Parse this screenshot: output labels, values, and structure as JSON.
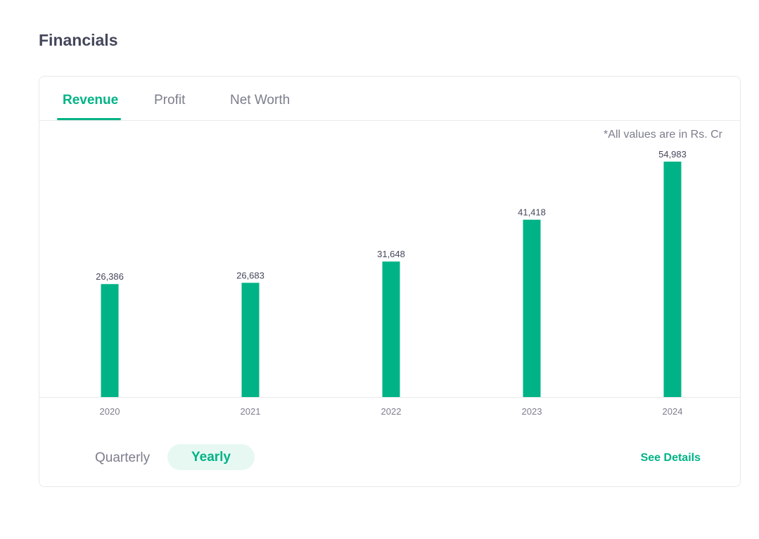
{
  "section": {
    "title": "Financials"
  },
  "tabs": [
    {
      "label": "Revenue",
      "active": true
    },
    {
      "label": "Profit",
      "active": false
    },
    {
      "label": "Net Worth",
      "active": false
    }
  ],
  "unit_note": "*All values are in Rs. Cr",
  "period_toggle": {
    "quarterly_label": "Quarterly",
    "yearly_label": "Yearly",
    "selected": "Yearly"
  },
  "see_details_label": "See Details",
  "colors": {
    "accent": "#00b386",
    "accent_light": "#e7f8f3",
    "text_primary": "#44475b",
    "text_secondary": "#7c7e8c",
    "border": "#e9e9eb"
  },
  "chart_data": {
    "type": "bar",
    "categories": [
      "2020",
      "2021",
      "2022",
      "2023",
      "2024"
    ],
    "values": [
      26386,
      26683,
      31648,
      41418,
      54983
    ],
    "value_labels": [
      "26,386",
      "26,683",
      "31,648",
      "41,418",
      "54,983"
    ],
    "title": "",
    "xlabel": "",
    "ylabel": "",
    "ylim": [
      0,
      54983
    ],
    "grid": false,
    "legend": "none"
  }
}
